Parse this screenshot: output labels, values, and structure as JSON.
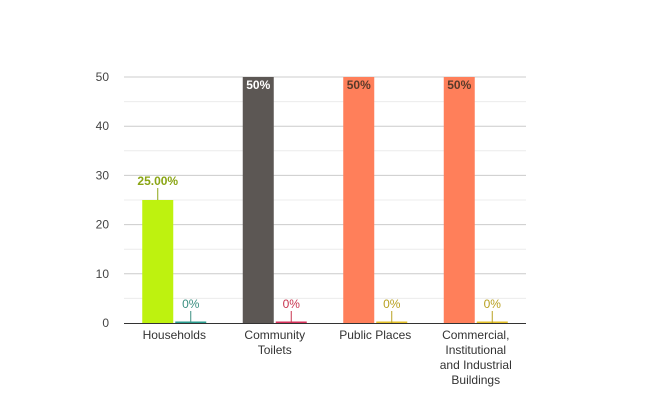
{
  "chart_data": {
    "type": "bar",
    "title": "",
    "xlabel": "",
    "ylabel": "",
    "ylim": [
      0,
      50
    ],
    "yticks": [
      0,
      10,
      20,
      30,
      40,
      50
    ],
    "grid": true,
    "categories": [
      [
        "Households"
      ],
      [
        "Community",
        "Toilets"
      ],
      [
        "Public Places"
      ],
      [
        "Commercial,",
        "Institutional",
        "and Industrial",
        "Buildings"
      ]
    ],
    "series": [
      {
        "values": [
          25,
          50,
          50,
          50
        ],
        "labels": [
          "25.00%",
          "50%",
          "50%",
          "50%"
        ],
        "colors": [
          "#bef20f",
          "#5c5754",
          "#ff7f5a",
          "#ff7f5a"
        ],
        "label_colors": [
          "#8aa514",
          "#ffffff",
          "#5a3a2a",
          "#5a3a2a"
        ]
      },
      {
        "values": [
          0,
          0,
          0,
          0
        ],
        "labels": [
          "0%",
          "0%",
          "0%",
          "0%"
        ],
        "colors": [
          "#2a9d8f",
          "#d8315b",
          "#e6c229",
          "#e6c229"
        ],
        "label_colors": [
          "#3a8f80",
          "#c8354f",
          "#b8a020",
          "#b8a020"
        ]
      }
    ]
  }
}
